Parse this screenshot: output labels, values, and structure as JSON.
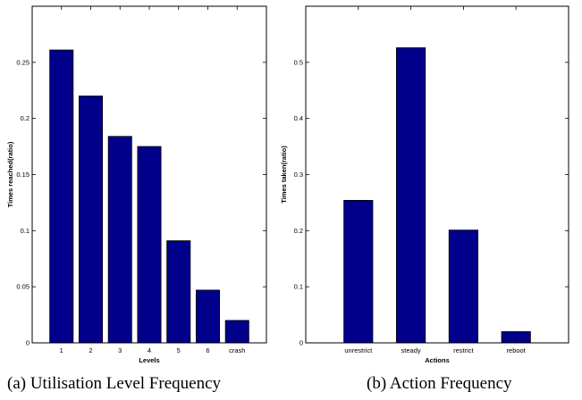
{
  "chart_data": [
    {
      "type": "bar",
      "caption": "(a) Utilisation Level Frequency",
      "categories": [
        "1",
        "2",
        "3",
        "4",
        "5",
        "6",
        "crash"
      ],
      "values": [
        0.261,
        0.22,
        0.184,
        0.175,
        0.091,
        0.047,
        0.02
      ],
      "xlabel": "Levels",
      "ylabel": "Times reached(ratio)",
      "ylim": [
        0,
        0.3
      ],
      "yticks": [
        0,
        0.05,
        0.1,
        0.15,
        0.2,
        0.25
      ],
      "ytick_labels": [
        "0",
        "0.05",
        "0.1",
        "0.15",
        "0.2",
        "0.25"
      ],
      "bar_color": "#00008b",
      "grid": false
    },
    {
      "type": "bar",
      "caption": "(b) Action Frequency",
      "categories": [
        "unrestrict",
        "steady",
        "restrict",
        "reboot"
      ],
      "values": [
        0.254,
        0.526,
        0.201,
        0.02
      ],
      "xlabel": "Actions",
      "ylabel": "Times taken(ratio)",
      "ylim": [
        0,
        0.6
      ],
      "yticks": [
        0,
        0.1,
        0.2,
        0.3,
        0.4,
        0.5
      ],
      "ytick_labels": [
        "0",
        "0.1",
        "0.2",
        "0.3",
        "0.4",
        "0.5"
      ],
      "bar_color": "#00008b",
      "grid": false
    }
  ]
}
